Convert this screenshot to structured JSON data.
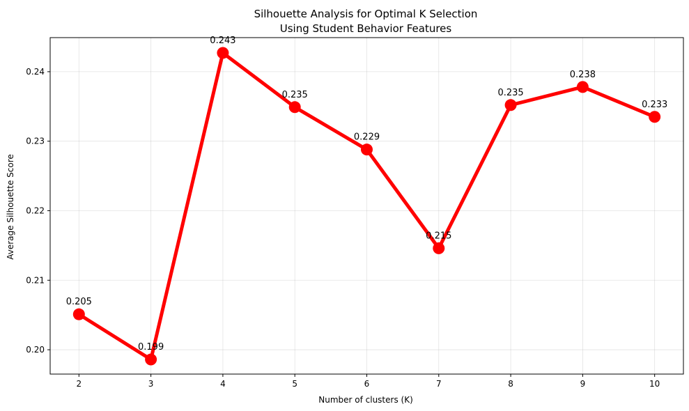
{
  "chart_data": {
    "type": "line",
    "title": [
      "Silhouette Analysis for Optimal K Selection",
      "Using Student Behavior Features"
    ],
    "xlabel": "Number of clusters (K)",
    "ylabel": "Average Silhouette Score",
    "x": [
      2,
      3,
      4,
      5,
      6,
      7,
      8,
      9,
      10
    ],
    "series": [
      {
        "values": [
          0.2051,
          0.1986,
          0.2427,
          0.2349,
          0.2288,
          0.2146,
          0.2352,
          0.2378,
          0.2335
        ],
        "labels": [
          "0.205",
          "0.199",
          "0.243",
          "0.235",
          "0.229",
          "0.215",
          "0.235",
          "0.238",
          "0.233"
        ],
        "color": "#ff0000",
        "marker": "circle"
      }
    ],
    "xlim": [
      1.6,
      10.4
    ],
    "ylim": [
      0.1965,
      0.2449
    ],
    "xticks": [
      2,
      3,
      4,
      5,
      6,
      7,
      8,
      9,
      10
    ],
    "yticks": [
      0.2,
      0.21,
      0.22,
      0.23,
      0.24
    ],
    "ytick_labels": [
      "0.20",
      "0.21",
      "0.22",
      "0.23",
      "0.24"
    ],
    "grid": true,
    "legend": "none"
  }
}
